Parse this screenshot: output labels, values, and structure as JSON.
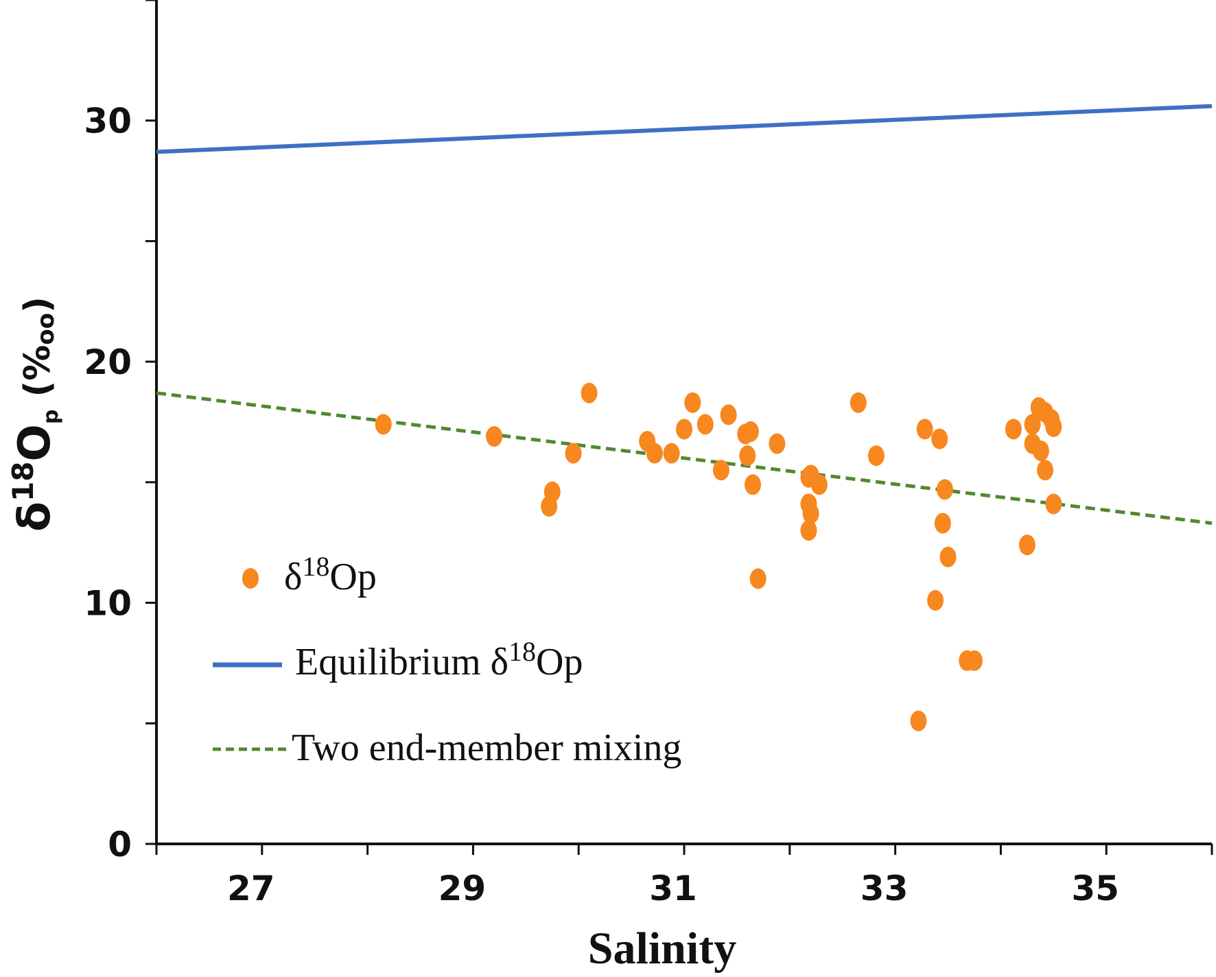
{
  "chart_data": {
    "type": "scatter",
    "xlabel": "Salinity",
    "ylabel": {
      "main": "δ",
      "sup": "18",
      "letter": "O",
      "sub": "p",
      "unit": "(%",
      "unit_sub": "oo",
      "unit_close": ")"
    },
    "xlim": [
      26,
      36
    ],
    "ylim": [
      0,
      35
    ],
    "xticks": [
      "27",
      "29",
      "31",
      "33",
      "35"
    ],
    "yticks": [
      "0",
      "10",
      "20",
      "30"
    ],
    "colors": {
      "points": "#f7871f",
      "equilibrium": "#3f6fc5",
      "mixing": "#4f8a2f",
      "axis": "#111111"
    },
    "series": [
      {
        "name": "δ18Op",
        "kind": "points",
        "points": [
          [
            28.15,
            17.4
          ],
          [
            29.2,
            16.9
          ],
          [
            29.75,
            14.6
          ],
          [
            29.72,
            14.0
          ],
          [
            29.95,
            16.2
          ],
          [
            30.1,
            18.7
          ],
          [
            30.65,
            16.7
          ],
          [
            30.72,
            16.2
          ],
          [
            30.88,
            16.2
          ],
          [
            31.0,
            17.2
          ],
          [
            31.08,
            18.3
          ],
          [
            31.2,
            17.4
          ],
          [
            31.35,
            15.5
          ],
          [
            31.42,
            17.8
          ],
          [
            31.58,
            17.0
          ],
          [
            31.63,
            17.1
          ],
          [
            31.6,
            16.1
          ],
          [
            31.65,
            14.9
          ],
          [
            31.7,
            11.0
          ],
          [
            31.88,
            16.6
          ],
          [
            32.18,
            15.2
          ],
          [
            32.2,
            15.3
          ],
          [
            32.28,
            14.9
          ],
          [
            32.18,
            14.1
          ],
          [
            32.2,
            13.7
          ],
          [
            32.18,
            13.0
          ],
          [
            32.65,
            18.3
          ],
          [
            32.82,
            16.1
          ],
          [
            33.22,
            5.1
          ],
          [
            33.28,
            17.2
          ],
          [
            33.38,
            10.1
          ],
          [
            33.42,
            16.8
          ],
          [
            33.45,
            13.3
          ],
          [
            33.47,
            14.7
          ],
          [
            33.5,
            11.9
          ],
          [
            33.68,
            7.6
          ],
          [
            33.75,
            7.6
          ],
          [
            34.12,
            17.2
          ],
          [
            34.25,
            12.4
          ],
          [
            34.3,
            17.4
          ],
          [
            34.3,
            16.6
          ],
          [
            34.36,
            18.1
          ],
          [
            34.38,
            16.3
          ],
          [
            34.42,
            17.9
          ],
          [
            34.42,
            15.5
          ],
          [
            34.48,
            17.6
          ],
          [
            34.5,
            17.3
          ],
          [
            34.5,
            14.1
          ]
        ]
      },
      {
        "name": "Equilibrium δ18Op",
        "kind": "line",
        "points": [
          [
            26,
            28.7
          ],
          [
            36,
            30.6
          ]
        ]
      },
      {
        "name": "Two end-member mixing",
        "kind": "dashed-line",
        "points": [
          [
            26,
            18.7
          ],
          [
            36,
            13.3
          ]
        ]
      }
    ],
    "legend": {
      "placement": "bottom-left",
      "entries": [
        {
          "label": "δ",
          "sup": "18",
          "rest": "Op"
        },
        {
          "label": "Equilibrium  δ",
          "sup": "18",
          "rest": "Op"
        },
        {
          "label": "Two end-member mixing",
          "sup": "",
          "rest": ""
        }
      ]
    }
  }
}
